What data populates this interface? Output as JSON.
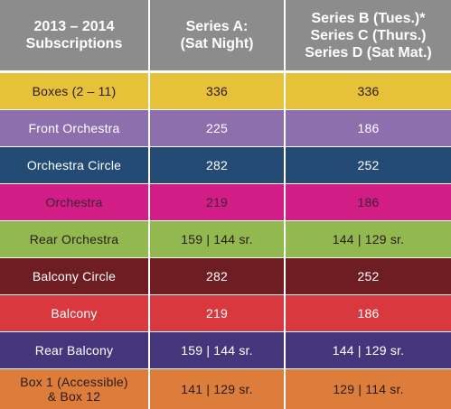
{
  "header": {
    "col1": "2013 – 2014\nSubscriptions",
    "col2": "Series A:\n(Sat Night)",
    "col3": "Series B (Tues.)*\nSeries C (Thurs.)\nSeries D (Sat Mat.)"
  },
  "rows": [
    {
      "section": "Boxes (2 – 11)",
      "series_a": "336",
      "series_bcd": "336",
      "color": "#e8c13a"
    },
    {
      "section": "Front Orchestra",
      "series_a": "225",
      "series_bcd": "186",
      "color": "#8e6fae"
    },
    {
      "section": "Orchestra Circle",
      "series_a": "282",
      "series_bcd": "252",
      "color": "#234b74"
    },
    {
      "section": "Orchestra",
      "series_a": "219",
      "series_bcd": "186",
      "color": "#d21d86"
    },
    {
      "section": "Rear Orchestra",
      "series_a": "159 | 144 sr.",
      "series_bcd": "144 | 129 sr.",
      "color": "#92b850"
    },
    {
      "section": "Balcony Circle",
      "series_a": "282",
      "series_bcd": "252",
      "color": "#6e1e23"
    },
    {
      "section": "Balcony",
      "series_a": "219",
      "series_bcd": "186",
      "color": "#d9383e"
    },
    {
      "section": "Rear Balcony",
      "series_a": "159 | 144 sr.",
      "series_bcd": "144 | 129 sr.",
      "color": "#43367a"
    },
    {
      "section": "Box 1 (Accessible)\n& Box 12",
      "series_a": "141 | 129 sr.",
      "series_bcd": "129 | 114 sr.",
      "color": "#dd7d3c"
    }
  ]
}
